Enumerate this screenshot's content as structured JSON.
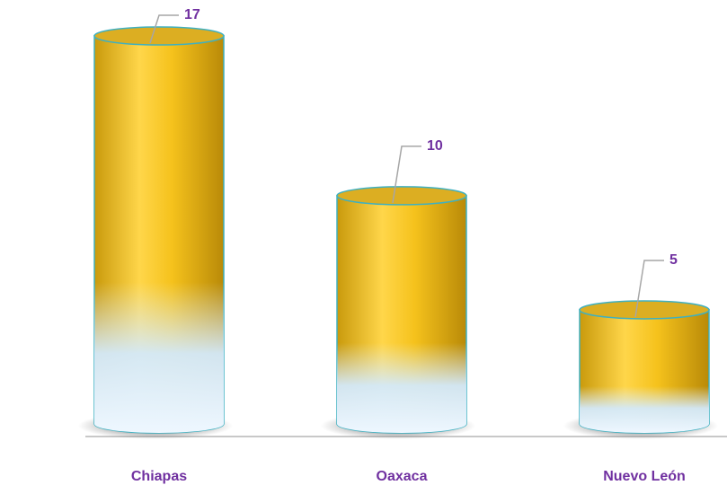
{
  "chart_data": {
    "type": "bar",
    "categories": [
      "Chiapas",
      "Oaxaca",
      "Nuevo León"
    ],
    "values": [
      17,
      10,
      5
    ],
    "color": "#f2c314"
  }
}
